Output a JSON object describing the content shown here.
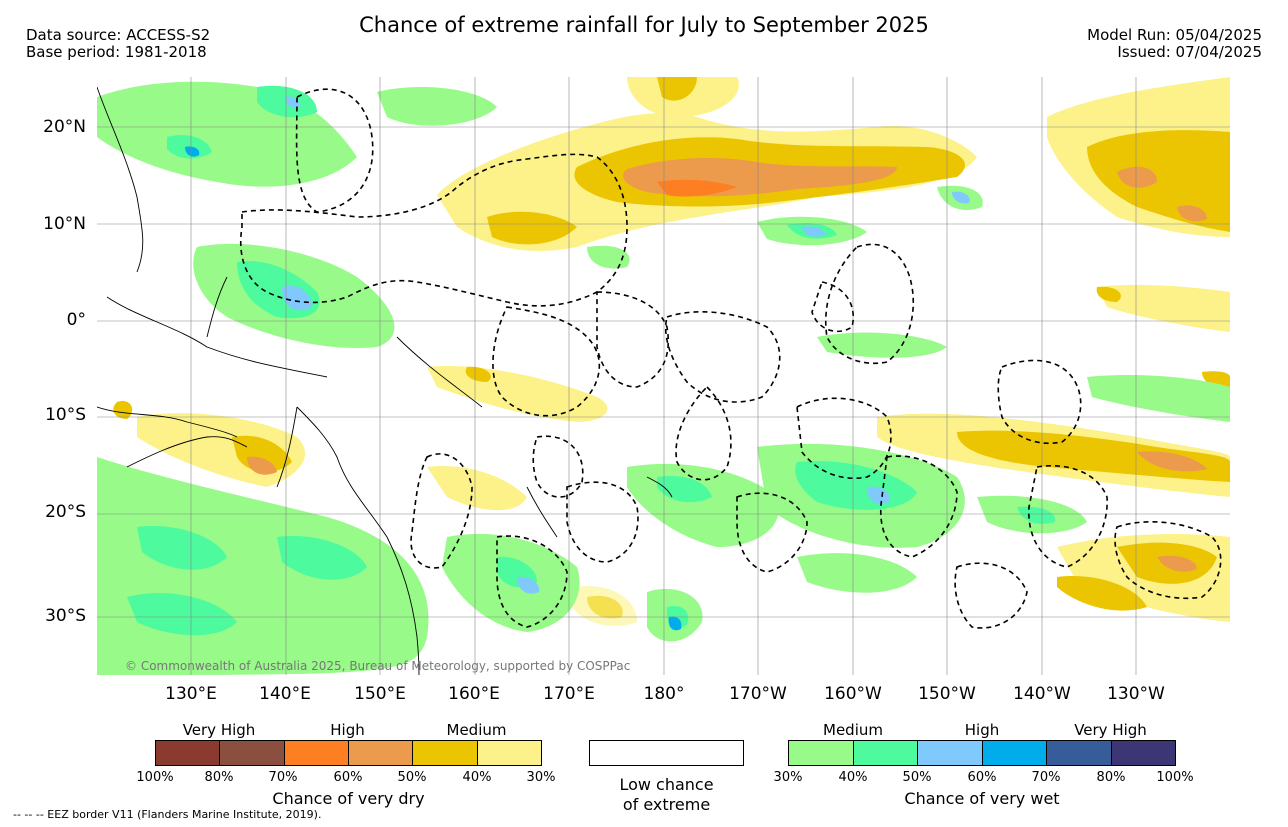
{
  "header": {
    "title": "Chance of extreme rainfall for July to September 2025",
    "data_source": "Data source: ACCESS-S2",
    "base_period": "Base period: 1981-2018",
    "model_run": "Model Run: 05/04/2025",
    "issued": "Issued: 07/04/2025"
  },
  "map": {
    "lat_labels": [
      "20°N",
      "10°N",
      "0°",
      "10°S",
      "20°S",
      "30°S"
    ],
    "lon_labels": [
      "130°E",
      "140°E",
      "150°E",
      "160°E",
      "170°E",
      "180°",
      "170°W",
      "160°W",
      "150°W",
      "140°W",
      "130°W"
    ],
    "copyright": "© Commonwealth of Australia 2025, Bureau of Meteorology, supported by COSPPac",
    "land_color": "#ffffff",
    "boundary_style": "dashed black EEZ borders"
  },
  "legend": {
    "dry": {
      "categories": [
        "Very High",
        "High",
        "Medium"
      ],
      "percent_labels": [
        "100%",
        "80%",
        "70%",
        "60%",
        "50%",
        "40%",
        "30%"
      ],
      "colors": [
        "#8b3a2f",
        "#8b4f3f",
        "#fd7f22",
        "#ec9a4c",
        "#ecc502",
        "#fcf289"
      ],
      "caption": "Chance of very dry"
    },
    "low": {
      "line1": "Low chance",
      "line2": "of extreme"
    },
    "wet": {
      "categories": [
        "Medium",
        "High",
        "Very High"
      ],
      "percent_labels": [
        "30%",
        "40%",
        "50%",
        "60%",
        "70%",
        "80%",
        "100%"
      ],
      "colors": [
        "#98fa89",
        "#4dfa9e",
        "#7fc9fc",
        "#00acea",
        "#365d99",
        "#3d3675"
      ],
      "caption": "Chance of very wet"
    }
  },
  "footer": {
    "eez_note": "-- -- -- EEZ border V11 (Flanders Marine Institute, 2019)."
  }
}
